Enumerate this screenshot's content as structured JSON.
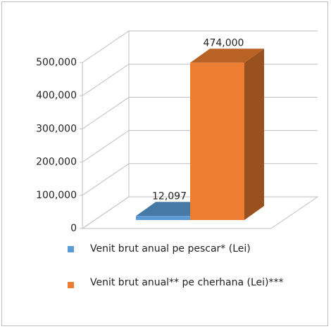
{
  "chart_data": {
    "type": "bar3d",
    "series": [
      {
        "name": "Venit brut anual pe pescar* (Lei)",
        "color": "#5b9bd5",
        "values": [
          12097
        ],
        "value_labels": [
          "12,097"
        ]
      },
      {
        "name": "Venit brut anual** pe cherhana (Lei)***",
        "color": "#ed7d31",
        "values": [
          474000
        ],
        "value_labels": [
          "474,000"
        ]
      }
    ],
    "ylim": [
      0,
      500000
    ],
    "yticks": [
      0,
      {
        "value": 100000,
        "label": "100,000"
      },
      {
        "value": 200000,
        "label": "200,000"
      },
      {
        "value": 300000,
        "label": "300,000"
      },
      {
        "value": 400000,
        "label": "400,000"
      },
      {
        "value": 500000,
        "label": "500,000"
      }
    ],
    "grid": true
  }
}
